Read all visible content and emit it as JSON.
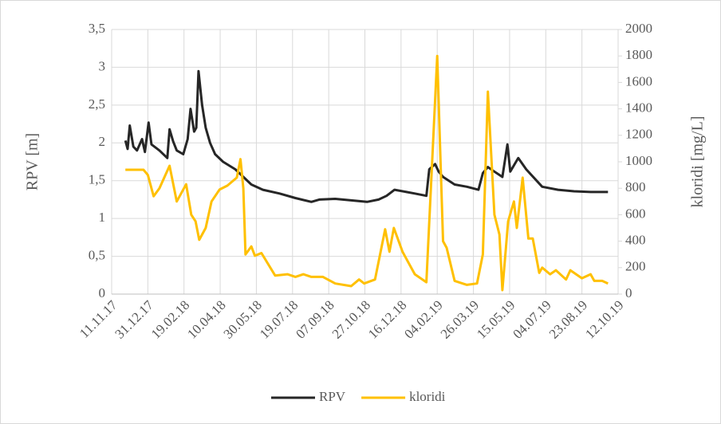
{
  "chart_data": {
    "type": "line",
    "ylabel": "RPV [m]",
    "y2label": "kloridi [mg/L]",
    "xlim": [
      "2017-11-11",
      "2019-10-12"
    ],
    "xticks": [
      {
        "value": "2017-11-11",
        "label": "11.11.17"
      },
      {
        "value": "2017-12-31",
        "label": "31.12.17"
      },
      {
        "value": "2018-02-19",
        "label": "19.02.18"
      },
      {
        "value": "2018-04-10",
        "label": "10.04.18"
      },
      {
        "value": "2018-05-30",
        "label": "30.05.18"
      },
      {
        "value": "2018-07-19",
        "label": "19.07.18"
      },
      {
        "value": "2018-09-07",
        "label": "07.09.18"
      },
      {
        "value": "2018-10-27",
        "label": "27.10.18"
      },
      {
        "value": "2018-12-16",
        "label": "16.12.18"
      },
      {
        "value": "2019-02-04",
        "label": "04.02.19"
      },
      {
        "value": "2019-03-26",
        "label": "26.03.19"
      },
      {
        "value": "2019-05-15",
        "label": "15.05.19"
      },
      {
        "value": "2019-07-04",
        "label": "04.07.19"
      },
      {
        "value": "2019-08-23",
        "label": "23.08.19"
      },
      {
        "value": "2019-10-12",
        "label": "12.10.19"
      }
    ],
    "ylim": [
      0,
      3.5
    ],
    "yticks": [
      0,
      {
        "value": 0.5,
        "label": "0,5"
      },
      1,
      {
        "value": 1.5,
        "label": "1,5"
      },
      2,
      {
        "value": 2.5,
        "label": "2,5"
      },
      3,
      {
        "value": 3.5,
        "label": "3,5"
      }
    ],
    "y2lim": [
      0,
      2000
    ],
    "y2ticks": [
      0,
      200,
      400,
      600,
      800,
      1000,
      1200,
      1400,
      1600,
      1800,
      2000
    ],
    "grid": true,
    "legend": "bottom",
    "series": [
      {
        "name": "RPV",
        "color": "#262626",
        "axis": "y",
        "x": [
          "2017-11-30",
          "2017-12-03",
          "2017-12-06",
          "2017-12-11",
          "2017-12-16",
          "2017-12-23",
          "2017-12-27",
          "2018-01-01",
          "2018-01-05",
          "2018-01-16",
          "2018-01-27",
          "2018-01-30",
          "2018-02-04",
          "2018-02-09",
          "2018-02-18",
          "2018-02-24",
          "2018-02-28",
          "2018-03-05",
          "2018-03-08",
          "2018-03-11",
          "2018-03-16",
          "2018-03-21",
          "2018-03-27",
          "2018-04-03",
          "2018-04-14",
          "2018-05-01",
          "2018-05-12",
          "2018-05-23",
          "2018-06-08",
          "2018-07-01",
          "2018-07-23",
          "2018-08-14",
          "2018-08-25",
          "2018-09-16",
          "2018-10-08",
          "2018-10-30",
          "2018-11-15",
          "2018-11-26",
          "2018-12-07",
          "2019-01-04",
          "2019-01-20",
          "2019-01-24",
          "2019-02-01",
          "2019-02-06",
          "2019-02-12",
          "2019-02-28",
          "2019-03-17",
          "2019-04-02",
          "2019-04-08",
          "2019-04-15",
          "2019-04-24",
          "2019-05-05",
          "2019-05-12",
          "2019-05-16",
          "2019-05-27",
          "2019-06-07",
          "2019-06-29",
          "2019-07-21",
          "2019-08-12",
          "2019-09-04",
          "2019-09-28"
        ],
        "values": [
          2.03,
          1.92,
          2.23,
          1.95,
          1.9,
          2.05,
          1.88,
          2.27,
          1.98,
          1.9,
          1.8,
          2.18,
          2.02,
          1.9,
          1.85,
          2.05,
          2.45,
          2.15,
          2.2,
          2.95,
          2.5,
          2.2,
          2.0,
          1.85,
          1.75,
          1.65,
          1.55,
          1.45,
          1.38,
          1.33,
          1.27,
          1.22,
          1.25,
          1.26,
          1.24,
          1.22,
          1.25,
          1.3,
          1.38,
          1.33,
          1.3,
          1.65,
          1.72,
          1.62,
          1.55,
          1.45,
          1.42,
          1.38,
          1.6,
          1.68,
          1.62,
          1.55,
          1.98,
          1.62,
          1.8,
          1.65,
          1.42,
          1.38,
          1.36,
          1.35,
          1.35
        ]
      },
      {
        "name": "kloridi",
        "color": "#ffc000",
        "axis": "y2",
        "x": [
          "2017-11-30",
          "2017-12-25",
          "2017-12-31",
          "2018-01-08",
          "2018-01-16",
          "2018-01-30",
          "2018-02-09",
          "2018-02-22",
          "2018-03-01",
          "2018-03-07",
          "2018-03-12",
          "2018-03-21",
          "2018-03-29",
          "2018-04-09",
          "2018-04-20",
          "2018-05-03",
          "2018-05-08",
          "2018-05-12",
          "2018-05-15",
          "2018-05-23",
          "2018-05-28",
          "2018-06-06",
          "2018-06-25",
          "2018-07-12",
          "2018-07-23",
          "2018-08-03",
          "2018-08-14",
          "2018-08-30",
          "2018-09-16",
          "2018-10-08",
          "2018-10-19",
          "2018-10-26",
          "2018-11-10",
          "2018-11-24",
          "2018-11-30",
          "2018-12-06",
          "2018-12-18",
          "2019-01-04",
          "2019-01-20",
          "2019-02-04",
          "2019-02-12",
          "2019-02-17",
          "2019-02-28",
          "2019-03-17",
          "2019-03-31",
          "2019-04-08",
          "2019-04-15",
          "2019-04-24",
          "2019-05-01",
          "2019-05-05",
          "2019-05-13",
          "2019-05-21",
          "2019-05-25",
          "2019-06-02",
          "2019-06-10",
          "2019-06-16",
          "2019-06-25",
          "2019-06-29",
          "2019-07-10",
          "2019-07-18",
          "2019-08-01",
          "2019-08-07",
          "2019-08-23",
          "2019-09-04",
          "2019-09-09",
          "2019-09-20",
          "2019-09-28"
        ],
        "values": [
          940,
          940,
          900,
          740,
          800,
          970,
          700,
          830,
          600,
          550,
          410,
          500,
          700,
          790,
          820,
          880,
          1020,
          800,
          300,
          360,
          290,
          310,
          140,
          150,
          130,
          150,
          130,
          130,
          80,
          60,
          110,
          80,
          110,
          490,
          320,
          500,
          320,
          150,
          90,
          1800,
          400,
          350,
          100,
          70,
          80,
          300,
          1530,
          600,
          450,
          30,
          550,
          700,
          500,
          880,
          420,
          420,
          160,
          200,
          150,
          180,
          110,
          180,
          120,
          150,
          100,
          100,
          80
        ]
      }
    ]
  }
}
